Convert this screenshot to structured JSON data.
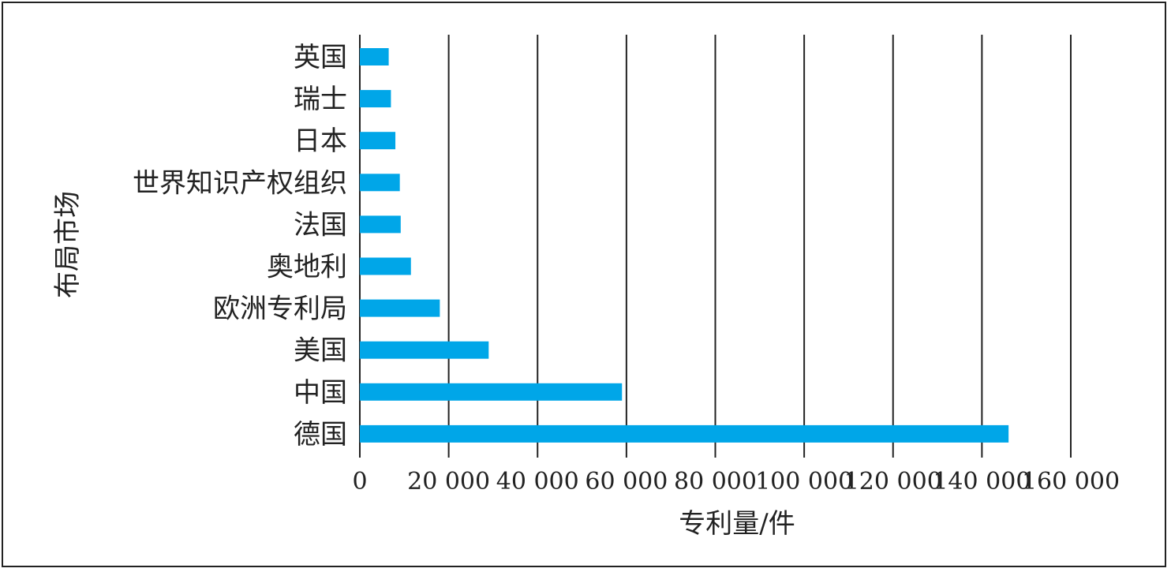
{
  "chart_data": {
    "type": "bar",
    "orientation": "horizontal",
    "categories": [
      "英国",
      "瑞士",
      "日本",
      "世界知识产权组织",
      "法国",
      "奥地利",
      "欧洲专利局",
      "美国",
      "中国",
      "德国"
    ],
    "values": [
      6500,
      7000,
      8000,
      9000,
      9200,
      11500,
      18000,
      29000,
      59000,
      146000
    ],
    "xlabel": "专利量/件",
    "ylabel": "布局市场",
    "xlim": [
      0,
      160000
    ],
    "xticks": [
      0,
      20000,
      40000,
      60000,
      80000,
      100000,
      120000,
      140000,
      160000
    ],
    "xtick_labels": [
      "0",
      "20 000",
      "40 000",
      "60 000",
      "80 000",
      "100 000",
      "120 000",
      "140 000",
      "160 000"
    ],
    "grid": "vertical",
    "bar_color": "#00a6e8"
  }
}
